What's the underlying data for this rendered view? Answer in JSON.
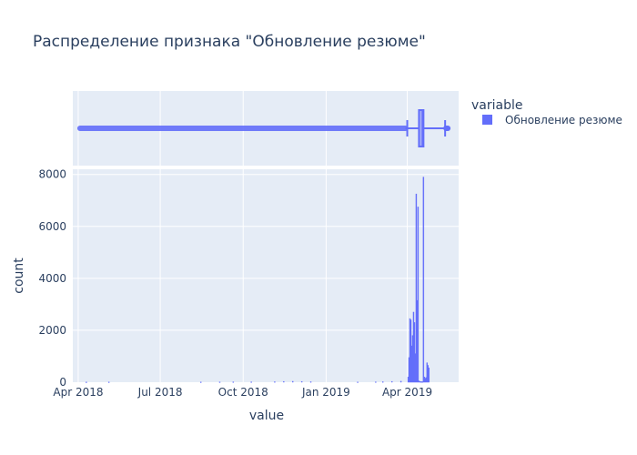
{
  "chart_data": {
    "type": "histogram+box",
    "title": "Распределение признака \"Обновление резюме\"",
    "xlabel": "value",
    "ylabel": "count",
    "x_tick_labels": [
      "Apr 2018",
      "Jul 2018",
      "Oct 2018",
      "Jan 2019",
      "Apr 2019"
    ],
    "x_tick_dates": [
      "2018-04-01",
      "2018-07-01",
      "2018-10-01",
      "2019-01-01",
      "2019-04-01"
    ],
    "xlim": [
      "2018-03-26",
      "2019-05-28"
    ],
    "y_ticks": [
      0,
      2000,
      4000,
      6000,
      8000
    ],
    "y_tick_labels": [
      "0",
      "2000",
      "4000",
      "6000",
      "8000"
    ],
    "ylim": [
      0,
      8200
    ],
    "color": "#636efa",
    "plot_bg": "#e5ecf6",
    "grid": true,
    "legend": {
      "title": "variable",
      "placement": "top-right",
      "entries": [
        {
          "name": "Обновление резюме",
          "color": "#636efa"
        }
      ]
    },
    "box": {
      "outlier_range": [
        "2018-04-03",
        "2019-03-30"
      ],
      "lower_fence": "2019-04-01",
      "q1": "2019-04-14",
      "median": "2019-04-18",
      "q3": "2019-04-19",
      "upper_fence": "2019-05-13",
      "upper_outliers": [
        "2019-05-14",
        "2019-05-15",
        "2019-05-16"
      ]
    },
    "series": [
      {
        "name": "Обновление резюме",
        "bins": [
          {
            "x": "2018-04-10",
            "count": 8
          },
          {
            "x": "2018-05-05",
            "count": 10
          },
          {
            "x": "2018-08-15",
            "count": 10
          },
          {
            "x": "2018-09-05",
            "count": 12
          },
          {
            "x": "2018-09-20",
            "count": 15
          },
          {
            "x": "2018-10-10",
            "count": 15
          },
          {
            "x": "2018-11-05",
            "count": 20
          },
          {
            "x": "2018-11-15",
            "count": 30
          },
          {
            "x": "2018-11-25",
            "count": 35
          },
          {
            "x": "2018-12-05",
            "count": 30
          },
          {
            "x": "2018-12-15",
            "count": 20
          },
          {
            "x": "2019-02-05",
            "count": 10
          },
          {
            "x": "2019-02-25",
            "count": 15
          },
          {
            "x": "2019-03-05",
            "count": 20
          },
          {
            "x": "2019-03-15",
            "count": 30
          },
          {
            "x": "2019-03-25",
            "count": 40
          },
          {
            "x": "2019-04-02",
            "count": 200
          },
          {
            "x": "2019-04-03",
            "count": 950
          },
          {
            "x": "2019-04-04",
            "count": 2450
          },
          {
            "x": "2019-04-05",
            "count": 2400
          },
          {
            "x": "2019-04-06",
            "count": 1400
          },
          {
            "x": "2019-04-07",
            "count": 1800
          },
          {
            "x": "2019-04-08",
            "count": 2700
          },
          {
            "x": "2019-04-09",
            "count": 2300
          },
          {
            "x": "2019-04-10",
            "count": 1100
          },
          {
            "x": "2019-04-11",
            "count": 7250
          },
          {
            "x": "2019-04-12",
            "count": 3150
          },
          {
            "x": "2019-04-13",
            "count": 6750
          },
          {
            "x": "2019-04-14",
            "count": 50
          },
          {
            "x": "2019-04-15",
            "count": 30
          },
          {
            "x": "2019-04-16",
            "count": 20
          },
          {
            "x": "2019-04-17",
            "count": 20
          },
          {
            "x": "2019-04-18",
            "count": 20
          },
          {
            "x": "2019-04-19",
            "count": 7900
          },
          {
            "x": "2019-04-20",
            "count": 200
          },
          {
            "x": "2019-04-21",
            "count": 150
          },
          {
            "x": "2019-04-22",
            "count": 180
          },
          {
            "x": "2019-04-23",
            "count": 750
          },
          {
            "x": "2019-04-24",
            "count": 650
          },
          {
            "x": "2019-04-25",
            "count": 550
          }
        ]
      }
    ]
  }
}
